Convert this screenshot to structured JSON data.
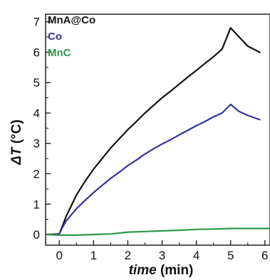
{
  "chart_data": {
    "type": "line",
    "xlabel": {
      "italic": "time",
      "unit": " (min)"
    },
    "ylabel": {
      "italic": "ΔT",
      "unit": " (°C)"
    },
    "xlim": [
      -0.4,
      6.15
    ],
    "ylim": [
      -0.35,
      7.25
    ],
    "xticks": [
      0,
      1,
      2,
      3,
      4,
      5,
      6
    ],
    "yticks": [
      0,
      1,
      2,
      3,
      4,
      5,
      6,
      7
    ],
    "grid": false,
    "legend_placement": "top-left",
    "series": [
      {
        "name": "MnA@Co",
        "color": "#111111",
        "points": [
          [
            -0.35,
            0.0
          ],
          [
            0.0,
            0.02
          ],
          [
            0.1,
            0.3
          ],
          [
            0.2,
            0.6
          ],
          [
            0.35,
            0.95
          ],
          [
            0.5,
            1.3
          ],
          [
            0.75,
            1.75
          ],
          [
            1.0,
            2.15
          ],
          [
            1.25,
            2.5
          ],
          [
            1.5,
            2.85
          ],
          [
            1.75,
            3.15
          ],
          [
            2.0,
            3.45
          ],
          [
            2.25,
            3.72
          ],
          [
            2.5,
            4.0
          ],
          [
            2.75,
            4.25
          ],
          [
            3.0,
            4.5
          ],
          [
            3.25,
            4.72
          ],
          [
            3.5,
            4.95
          ],
          [
            3.75,
            5.18
          ],
          [
            4.0,
            5.4
          ],
          [
            4.25,
            5.63
          ],
          [
            4.5,
            5.85
          ],
          [
            4.75,
            6.1
          ],
          [
            5.0,
            6.8
          ],
          [
            5.25,
            6.5
          ],
          [
            5.5,
            6.2
          ],
          [
            5.85,
            6.0
          ]
        ]
      },
      {
        "name": "Co",
        "color": "#33339a",
        "points": [
          [
            -0.35,
            0.0
          ],
          [
            0.0,
            0.02
          ],
          [
            0.1,
            0.25
          ],
          [
            0.2,
            0.45
          ],
          [
            0.35,
            0.65
          ],
          [
            0.5,
            0.85
          ],
          [
            0.75,
            1.12
          ],
          [
            1.0,
            1.38
          ],
          [
            1.25,
            1.62
          ],
          [
            1.5,
            1.85
          ],
          [
            1.75,
            2.05
          ],
          [
            2.0,
            2.27
          ],
          [
            2.25,
            2.45
          ],
          [
            2.5,
            2.65
          ],
          [
            2.75,
            2.82
          ],
          [
            3.0,
            2.98
          ],
          [
            3.25,
            3.12
          ],
          [
            3.5,
            3.28
          ],
          [
            3.75,
            3.43
          ],
          [
            4.0,
            3.58
          ],
          [
            4.25,
            3.72
          ],
          [
            4.5,
            3.87
          ],
          [
            4.75,
            4.0
          ],
          [
            5.0,
            4.28
          ],
          [
            5.25,
            4.05
          ],
          [
            5.5,
            3.92
          ],
          [
            5.85,
            3.78
          ]
        ]
      },
      {
        "name": "MnC",
        "color": "#2a9a4a",
        "points": [
          [
            -0.35,
            0.0
          ],
          [
            0.0,
            -0.02
          ],
          [
            0.5,
            -0.02
          ],
          [
            1.0,
            0.0
          ],
          [
            1.5,
            0.02
          ],
          [
            2.0,
            0.08
          ],
          [
            2.5,
            0.1
          ],
          [
            3.0,
            0.12
          ],
          [
            3.5,
            0.14
          ],
          [
            4.0,
            0.17
          ],
          [
            4.5,
            0.18
          ],
          [
            5.0,
            0.2
          ],
          [
            5.5,
            0.2
          ],
          [
            6.15,
            0.2
          ]
        ]
      }
    ]
  }
}
